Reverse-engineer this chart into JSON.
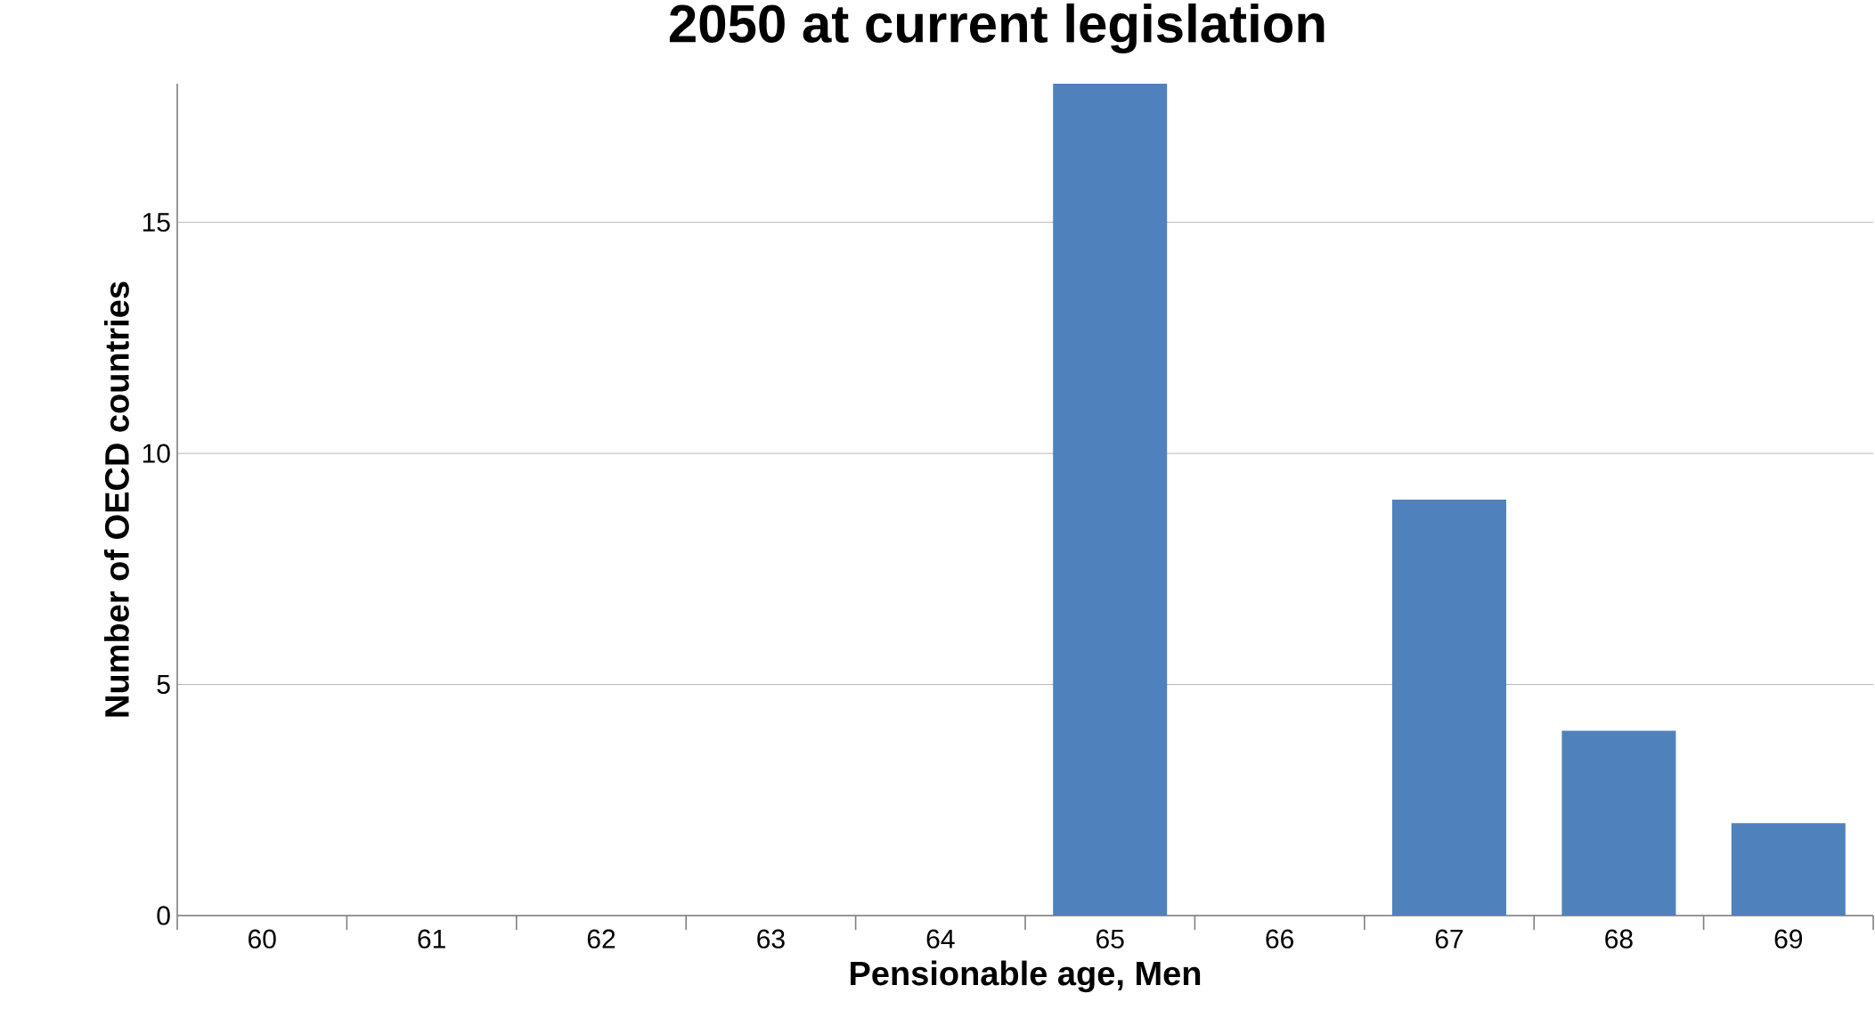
{
  "chart_data": {
    "type": "bar",
    "title": "2050 at current legislation",
    "xlabel": "Pensionable age, Men",
    "ylabel": "Number of OECD countries",
    "categories": [
      "60",
      "61",
      "62",
      "63",
      "64",
      "65",
      "66",
      "67",
      "68",
      "69"
    ],
    "values": [
      0,
      0,
      0,
      0,
      0,
      18,
      0,
      9,
      4,
      2
    ],
    "color": "#4f81bd",
    "ylim": [
      0,
      18
    ],
    "yticks": [
      0,
      5,
      10,
      15
    ],
    "grid": "y"
  }
}
